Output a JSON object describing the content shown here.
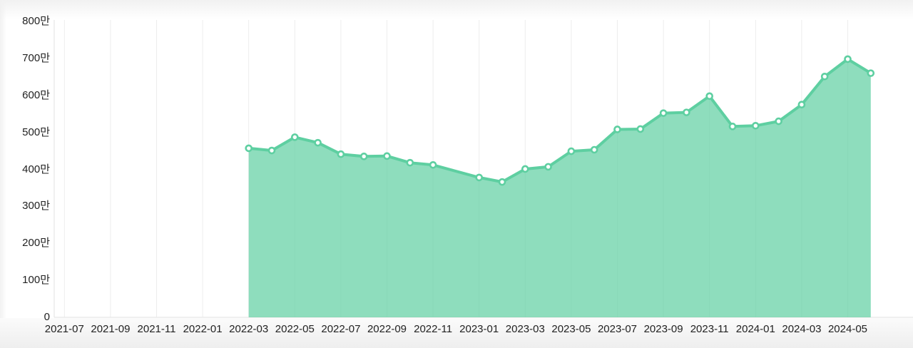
{
  "chart_data": {
    "type": "area",
    "title": "",
    "legend": "none",
    "y_axis_unit": "만",
    "ylim": [
      0,
      800
    ],
    "y_axis_tick_values": [
      800,
      700,
      600,
      500,
      400,
      300,
      200,
      100,
      0
    ],
    "y_axis_tick_labels": [
      "800만",
      "700만",
      "600만",
      "500만",
      "400만",
      "300만",
      "200만",
      "100만",
      "0"
    ],
    "x_axis_start_month": "2021-07",
    "x_tick_labels": [
      "2021-07",
      "2021-09",
      "2021-11",
      "2022-01",
      "2022-03",
      "2022-05",
      "2022-07",
      "2022-09",
      "2022-11",
      "2023-01",
      "2023-03",
      "2023-05",
      "2023-07",
      "2023-09",
      "2023-11",
      "2024-01",
      "2024-03",
      "2024-05"
    ],
    "grid": "vertical-bimonthly",
    "note": "values are in units of 만 (10,000); monthly points from 2022-03 to 2024-06 with no point for 2022-12",
    "series": [
      {
        "name": "monthly-value",
        "points": [
          {
            "month": "2022-03",
            "value": 457
          },
          {
            "month": "2022-04",
            "value": 451
          },
          {
            "month": "2022-05",
            "value": 487
          },
          {
            "month": "2022-06",
            "value": 472
          },
          {
            "month": "2022-07",
            "value": 441
          },
          {
            "month": "2022-08",
            "value": 435
          },
          {
            "month": "2022-09",
            "value": 436
          },
          {
            "month": "2022-10",
            "value": 418
          },
          {
            "month": "2022-11",
            "value": 412
          },
          {
            "month": "2023-01",
            "value": 378
          },
          {
            "month": "2023-02",
            "value": 366
          },
          {
            "month": "2023-03",
            "value": 401
          },
          {
            "month": "2023-04",
            "value": 407
          },
          {
            "month": "2023-05",
            "value": 449
          },
          {
            "month": "2023-06",
            "value": 453
          },
          {
            "month": "2023-07",
            "value": 508
          },
          {
            "month": "2023-08",
            "value": 509
          },
          {
            "month": "2023-09",
            "value": 552
          },
          {
            "month": "2023-10",
            "value": 554
          },
          {
            "month": "2023-11",
            "value": 598
          },
          {
            "month": "2023-12",
            "value": 516
          },
          {
            "month": "2024-01",
            "value": 518
          },
          {
            "month": "2024-02",
            "value": 530
          },
          {
            "month": "2024-03",
            "value": 575
          },
          {
            "month": "2024-04",
            "value": 651
          },
          {
            "month": "2024-05",
            "value": 698
          },
          {
            "month": "2024-06",
            "value": 660
          }
        ]
      }
    ],
    "colors": {
      "line": "#5ecfa1",
      "fill": "rgba(94,207,161,0.7)",
      "marker_fill": "#ffffff",
      "marker_stroke": "#5ecfa1",
      "gridline": "#ededed",
      "axis_line": "#e2e2e2",
      "tick_label": "#222222"
    }
  }
}
